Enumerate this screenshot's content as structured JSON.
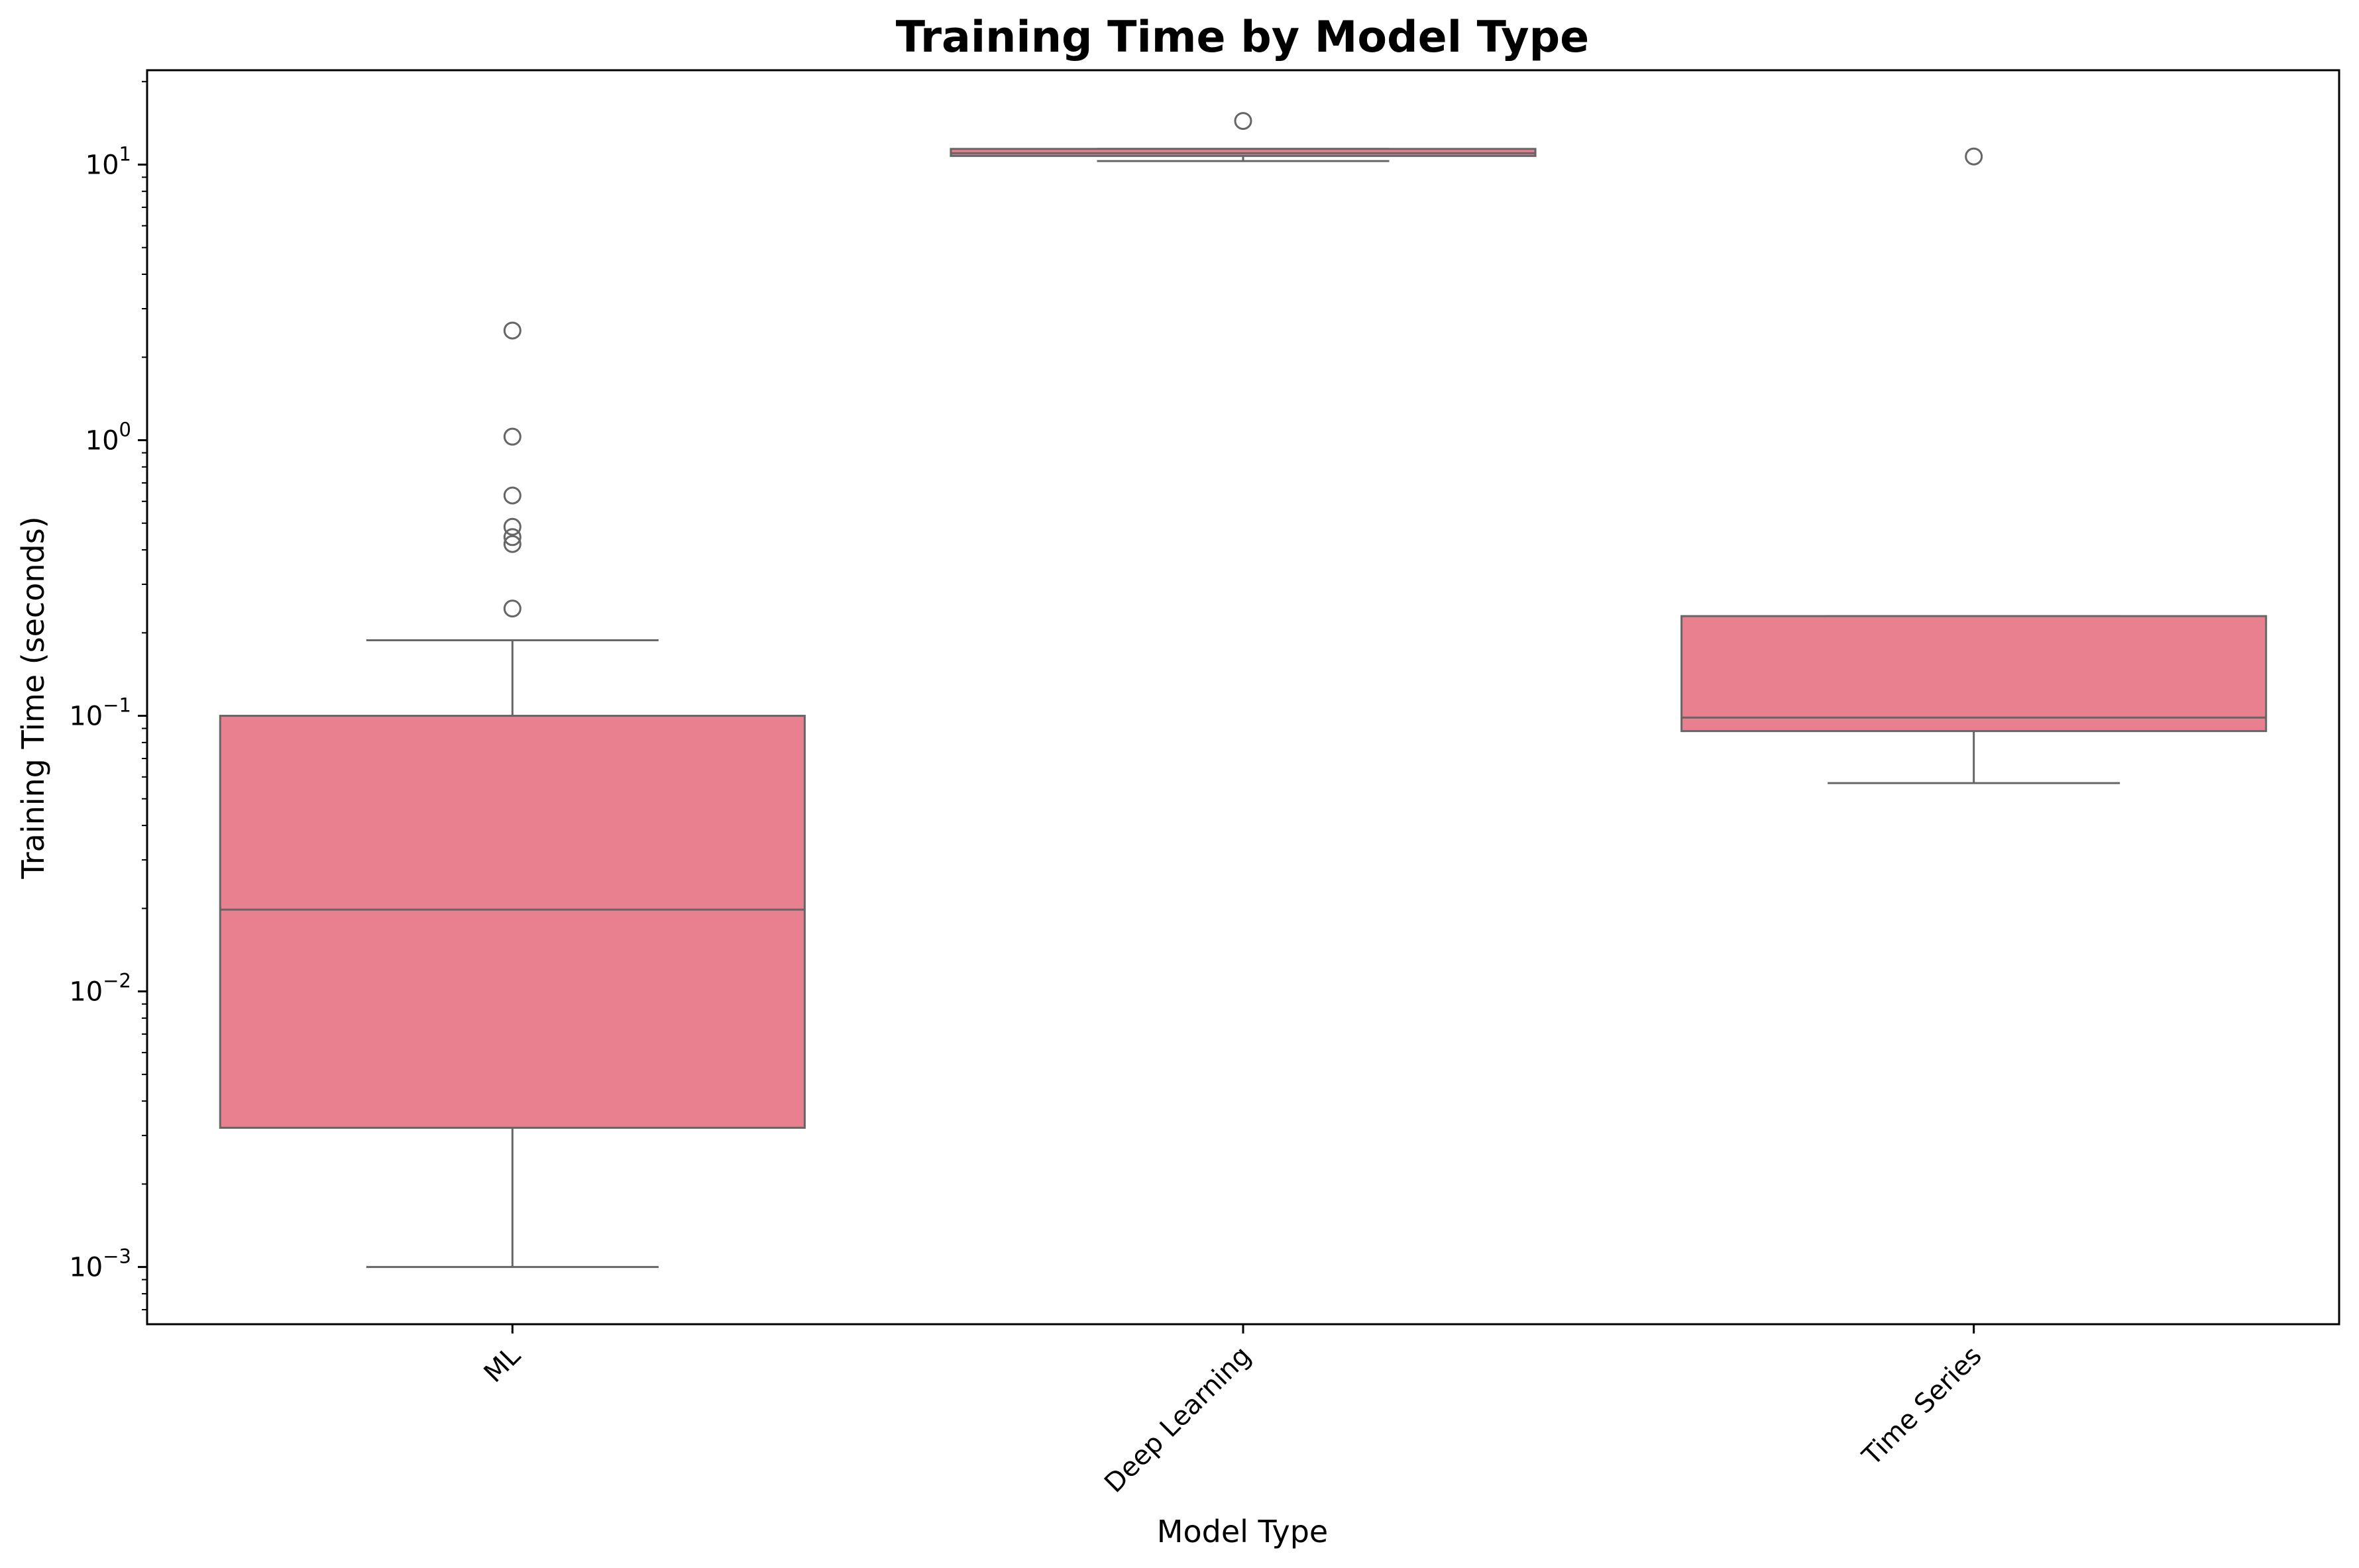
{
  "chart_data": {
    "type": "box",
    "title": "Training Time by Model Type",
    "xlabel": "Model Type",
    "ylabel": "Training Time (seconds)",
    "y_scale": "log",
    "ylim": [
      0.00062,
      22
    ],
    "y_ticks": [
      {
        "value": 0.001,
        "base": "10",
        "exp": "−3"
      },
      {
        "value": 0.01,
        "base": "10",
        "exp": "−2"
      },
      {
        "value": 0.1,
        "base": "10",
        "exp": "−1"
      },
      {
        "value": 1,
        "base": "10",
        "exp": "0"
      },
      {
        "value": 10,
        "base": "10",
        "exp": "1"
      }
    ],
    "grid": false,
    "box_color": "#e8808f",
    "line_color": "#666666",
    "categories": [
      "ML",
      "Deep Learning",
      "Time Series"
    ],
    "boxes": [
      {
        "category": "ML",
        "whisker_low": 0.001,
        "q1": 0.0032,
        "median": 0.0198,
        "q3": 0.1,
        "whisker_high": 0.188,
        "outliers": [
          2.5,
          1.03,
          0.63,
          0.485,
          0.445,
          0.42,
          0.245
        ]
      },
      {
        "category": "Deep Learning",
        "whisker_low": 10.3,
        "q1": 10.75,
        "median": 11.0,
        "q3": 11.4,
        "whisker_high": 11.4,
        "outliers": [
          14.4
        ]
      },
      {
        "category": "Time Series",
        "whisker_low": 0.057,
        "q1": 0.088,
        "median": 0.0985,
        "q3": 0.23,
        "whisker_high": 0.23,
        "outliers": [
          10.7
        ]
      }
    ]
  }
}
